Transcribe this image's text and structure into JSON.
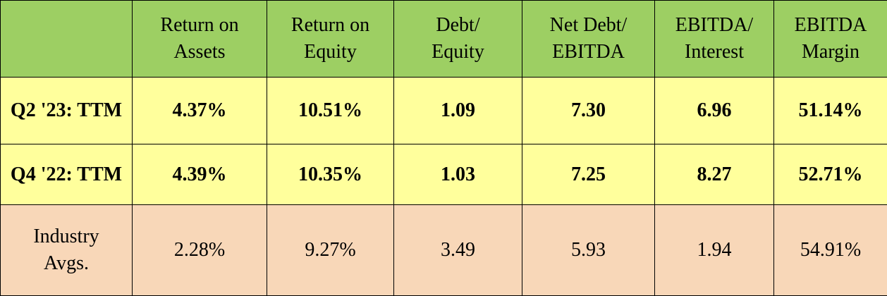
{
  "table": {
    "header": [
      [
        "Return on",
        "Assets"
      ],
      [
        "Return on",
        "Equity"
      ],
      [
        "Debt/",
        "Equity"
      ],
      [
        "Net Debt/",
        "EBITDA"
      ],
      [
        "EBITDA/",
        "Interest"
      ],
      [
        "EBITDA",
        "Margin"
      ]
    ],
    "rows": [
      {
        "label": [
          "Q2 '23: TTM"
        ],
        "values": [
          "4.37%",
          "10.51%",
          "1.09",
          "7.30",
          "6.96",
          "51.14%"
        ]
      },
      {
        "label": [
          "Q4 '22: TTM"
        ],
        "values": [
          "4.39%",
          "10.35%",
          "1.03",
          "7.25",
          "8.27",
          "52.71%"
        ]
      },
      {
        "label": [
          "Industry",
          "Avgs."
        ],
        "values": [
          "2.28%",
          "9.27%",
          "3.49",
          "5.93",
          "1.94",
          "54.91%"
        ]
      }
    ]
  }
}
